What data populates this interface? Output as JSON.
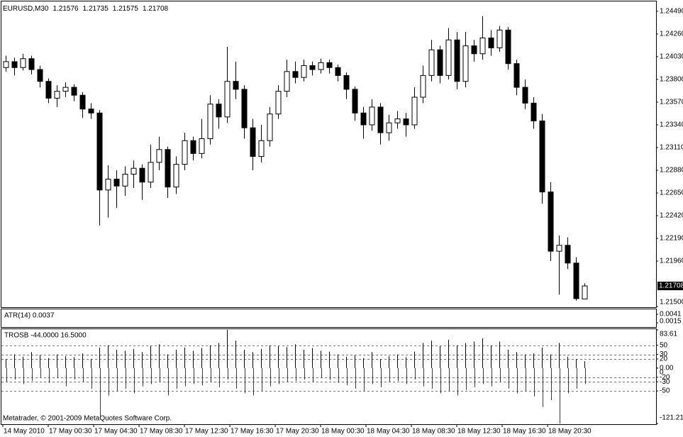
{
  "chart_data": [
    {
      "type": "candlestick",
      "title": "EURUSD,M30",
      "open": [
        1.2392,
        1.2398,
        1.2392,
        1.2401,
        1.239,
        1.2378,
        1.2361,
        1.2368,
        1.2372,
        1.2364,
        1.235,
        1.2346,
        1.2268,
        1.2279,
        1.2272,
        1.2284,
        1.229,
        1.2276,
        1.2296,
        1.2309,
        1.2271,
        1.2294,
        1.2318,
        1.2305,
        1.232,
        1.2355,
        1.2342,
        1.2378,
        1.237,
        1.2331,
        1.2302,
        1.2318,
        1.2345,
        1.2368,
        1.2388,
        1.2382,
        1.2394,
        1.239,
        1.2397,
        1.2392,
        1.2384,
        1.237,
        1.2346,
        1.2334,
        1.2352,
        1.2326,
        1.2336,
        1.234,
        1.2334,
        1.2362,
        1.2384,
        1.241,
        1.2384,
        1.242,
        1.2378,
        1.2414,
        1.2406,
        1.2422,
        1.2412,
        1.243,
        1.2396,
        1.2372,
        1.2356,
        1.2338,
        1.2266,
        1.2206,
        1.2212,
        1.2194,
        1.21576
      ],
      "high": [
        1.2404,
        1.2402,
        1.2406,
        1.2404,
        1.2394,
        1.2381,
        1.2374,
        1.2377,
        1.2375,
        1.2367,
        1.2356,
        1.2349,
        1.2293,
        1.2288,
        1.2292,
        1.2298,
        1.2294,
        1.2314,
        1.2322,
        1.2312,
        1.2302,
        1.2326,
        1.2322,
        1.234,
        1.2364,
        1.236,
        1.2413,
        1.2398,
        1.2374,
        1.234,
        1.2334,
        1.2352,
        1.2374,
        1.24,
        1.2398,
        1.24,
        1.2398,
        1.2401,
        1.24,
        1.2395,
        1.2387,
        1.2373,
        1.2352,
        1.236,
        1.2356,
        1.2344,
        1.2348,
        1.2346,
        1.2372,
        1.2394,
        1.242,
        1.2414,
        1.2432,
        1.2428,
        1.2428,
        1.242,
        1.2444,
        1.243,
        1.2434,
        1.2433,
        1.24,
        1.238,
        1.2362,
        1.2345,
        1.2276,
        1.2222,
        1.222,
        1.22,
        1.21735
      ],
      "low": [
        1.2388,
        1.2384,
        1.2389,
        1.2385,
        1.2372,
        1.2356,
        1.2352,
        1.2362,
        1.2358,
        1.2341,
        1.234,
        1.2232,
        1.224,
        1.225,
        1.2262,
        1.227,
        1.2258,
        1.227,
        1.2288,
        1.226,
        1.2264,
        1.2288,
        1.2298,
        1.23,
        1.2314,
        1.233,
        1.2336,
        1.236,
        1.232,
        1.2288,
        1.2296,
        1.2312,
        1.234,
        1.2362,
        1.2376,
        1.2378,
        1.2384,
        1.2386,
        1.2386,
        1.2378,
        1.236,
        1.2338,
        1.232,
        1.2328,
        1.2314,
        1.2318,
        1.233,
        1.2322,
        1.233,
        1.2356,
        1.2378,
        1.2376,
        1.238,
        1.237,
        1.2372,
        1.2398,
        1.24,
        1.2404,
        1.2408,
        1.239,
        1.2364,
        1.235,
        1.233,
        1.2254,
        1.2196,
        1.2162,
        1.2188,
        1.2156,
        1.21575
      ],
      "close": [
        1.2398,
        1.2392,
        1.2401,
        1.239,
        1.2378,
        1.2361,
        1.2368,
        1.2372,
        1.2364,
        1.235,
        1.2346,
        1.2268,
        1.2279,
        1.2272,
        1.2284,
        1.229,
        1.2276,
        1.2296,
        1.2309,
        1.2271,
        1.2294,
        1.2318,
        1.2305,
        1.232,
        1.2355,
        1.2342,
        1.2378,
        1.237,
        1.2331,
        1.2302,
        1.2318,
        1.2345,
        1.2368,
        1.2388,
        1.2382,
        1.2394,
        1.239,
        1.2397,
        1.2392,
        1.2384,
        1.237,
        1.2346,
        1.2334,
        1.2352,
        1.2326,
        1.2336,
        1.234,
        1.2334,
        1.2362,
        1.2384,
        1.241,
        1.2384,
        1.242,
        1.2378,
        1.2414,
        1.2406,
        1.2422,
        1.2412,
        1.243,
        1.2396,
        1.2372,
        1.2356,
        1.2338,
        1.2266,
        1.2206,
        1.2212,
        1.2194,
        1.2158,
        1.21708
      ],
      "bull_color": "#ffffff",
      "bear_color": "#000000",
      "ylim": [
        1.21486,
        1.2459
      ],
      "yticks": [
        {
          "value": 1.2449,
          "label": "1.24490"
        },
        {
          "value": 1.2426,
          "label": "1.24260"
        },
        {
          "value": 1.2403,
          "label": "1.24030"
        },
        {
          "value": 1.238,
          "label": "1.23800"
        },
        {
          "value": 1.2357,
          "label": "1.23570"
        },
        {
          "value": 1.2334,
          "label": "1.23340"
        },
        {
          "value": 1.2311,
          "label": "1.23110"
        },
        {
          "value": 1.2288,
          "label": "1.22880"
        },
        {
          "value": 1.2265,
          "label": "1.22650"
        },
        {
          "value": 1.2242,
          "label": "1.22420"
        },
        {
          "value": 1.2219,
          "label": "1.22190"
        },
        {
          "value": 1.2196,
          "label": "1.21960"
        },
        {
          "value": 1.215,
          "label": "1.21500"
        }
      ]
    },
    {
      "type": "line",
      "title": "ATR(14) 0.0037",
      "ylim": [
        0.0002,
        0.0054
      ],
      "yticks": [
        0.0041,
        0.0015
      ]
    },
    {
      "type": "bar",
      "title": "TROSB -44.0000 16.5000",
      "series": [
        {
          "color": "#000000",
          "values": [
            20,
            30,
            25,
            35,
            28,
            22,
            30,
            26,
            24,
            32,
            20,
            45,
            50,
            40,
            38,
            42,
            35,
            48,
            52,
            30,
            40,
            45,
            38,
            44,
            50,
            55,
            83.61,
            60,
            40,
            35,
            42,
            50,
            48,
            46,
            52,
            40,
            44,
            38,
            36,
            30,
            25,
            28,
            22,
            35,
            20,
            26,
            30,
            24,
            36,
            55,
            60,
            48,
            62,
            50,
            55,
            58,
            65,
            50,
            58,
            40,
            35,
            30,
            32,
            45,
            30,
            55,
            25,
            20,
            15
          ]
        },
        {
          "color": "#c00000",
          "values": [
            -30,
            -25,
            -35,
            -28,
            -20,
            -32,
            -22,
            -40,
            -25,
            -30,
            -45,
            -108,
            -60,
            -50,
            -45,
            -55,
            -40,
            -35,
            -30,
            -60,
            -45,
            -40,
            -35,
            -38,
            -30,
            -42,
            -25,
            -45,
            -55,
            -60,
            -50,
            -40,
            -35,
            -30,
            -28,
            -25,
            -30,
            -22,
            -26,
            -32,
            -38,
            -45,
            -50,
            -35,
            -42,
            -30,
            -28,
            -35,
            -25,
            -40,
            -45,
            -55,
            -50,
            -60,
            -48,
            -42,
            -35,
            -40,
            -30,
            -45,
            -55,
            -50,
            -62,
            -85,
            -70,
            -121.21,
            -55,
            -45,
            -35
          ]
        }
      ],
      "ylim": [
        -121.21,
        83.61
      ],
      "yticks": [
        83.61,
        50,
        30,
        20,
        {
          "value": 0,
          "label": "0.00"
        },
        0,
        -20,
        -30,
        -50,
        -121.21
      ],
      "levels": [
        50,
        30,
        20,
        -20,
        -30,
        -50
      ]
    }
  ],
  "time_axis": [
    "14 May 2010",
    "17 May 00:30",
    "17 May 04:30",
    "17 May 08:30",
    "17 May 12:30",
    "17 May 16:30",
    "17 May 20:30",
    "18 May 00:30",
    "18 May 04:30",
    "18 May 08:30",
    "18 May 12:30",
    "18 May 16:30",
    "18 May 20:30"
  ],
  "footer": "Metatrader, © 2001-2009 MetaQuotes Software Corp."
}
